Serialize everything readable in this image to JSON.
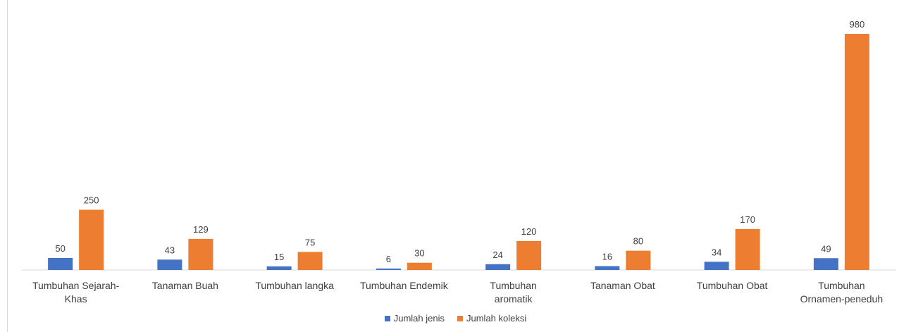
{
  "chart_data": {
    "type": "bar",
    "categories": [
      [
        "Tumbuhan Sejarah-",
        "Khas"
      ],
      [
        "Tanaman Buah"
      ],
      [
        "Tumbuhan langka"
      ],
      [
        "Tumbuhan Endemik"
      ],
      [
        "Tumbuhan",
        "aromatik"
      ],
      [
        "Tanaman Obat"
      ],
      [
        "Tumbuhan Obat"
      ],
      [
        "Tumbuhan",
        "Ornamen-peneduh"
      ]
    ],
    "series": [
      {
        "name": "Jumlah jenis",
        "color": "#4472C4",
        "values": [
          50,
          43,
          15,
          6,
          24,
          16,
          34,
          49
        ]
      },
      {
        "name": "Jumlah koleksi",
        "color": "#ED7D31",
        "values": [
          250,
          129,
          75,
          30,
          120,
          80,
          170,
          980
        ]
      }
    ],
    "ylim": [
      0,
      980
    ],
    "grid": false,
    "legend_position": "bottom",
    "data_labels": true
  }
}
